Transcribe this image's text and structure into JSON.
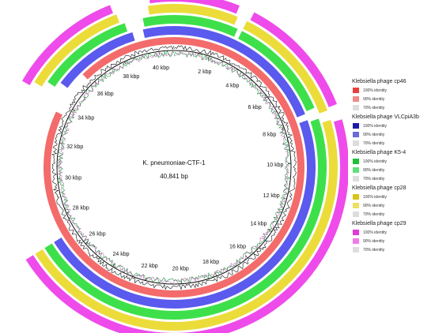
{
  "genome": {
    "name": "K. pneumoniae-CTF-1",
    "length_label": "40,841 bp",
    "length_bp": 40841
  },
  "ticks": [
    "2 kbp",
    "4 kbp",
    "6 kbp",
    "8 kbp",
    "10 kbp",
    "12 kbp",
    "14 kbp",
    "16 kbp",
    "18 kbp",
    "20 kbp",
    "22 kbp",
    "24 kbp",
    "26 kbp",
    "28 kbp",
    "30 kbp",
    "32 kbp",
    "34 kbp",
    "36 kbp",
    "38 kbp",
    "40 kbp"
  ],
  "legend": [
    {
      "title": "Klebsiella phage cp46",
      "items": [
        {
          "label": "100% identity",
          "color": "#e8413c"
        },
        {
          "label": "90% identity",
          "color": "#f08a85"
        },
        {
          "label": "70% identity",
          "color": "#dddddd"
        }
      ]
    },
    {
      "title": "Klebsiella phage VLCpiA3b",
      "items": [
        {
          "label": "100% identity",
          "color": "#1a1aa6"
        },
        {
          "label": "90% identity",
          "color": "#6a6ad8"
        },
        {
          "label": "70% identity",
          "color": "#dddddd"
        }
      ]
    },
    {
      "title": "Klebsiella phage K5-4",
      "items": [
        {
          "label": "100% identity",
          "color": "#1fbf3a"
        },
        {
          "label": "90% identity",
          "color": "#5fe07a"
        },
        {
          "label": "70% identity",
          "color": "#dddddd"
        }
      ]
    },
    {
      "title": "Klebsiella phage cp28",
      "items": [
        {
          "label": "100% identity",
          "color": "#d8c414"
        },
        {
          "label": "90% identity",
          "color": "#ece060"
        },
        {
          "label": "70% identity",
          "color": "#dddddd"
        }
      ]
    },
    {
      "title": "Klebsiella phage cp29",
      "items": [
        {
          "label": "100% identity",
          "color": "#e23ad8"
        },
        {
          "label": "90% identity",
          "color": "#f07ce8"
        },
        {
          "label": "70% identity",
          "color": "#dddddd"
        }
      ]
    }
  ],
  "rings": [
    {
      "name": "cp46",
      "color": "#f36b6b",
      "coverage": [
        [
          0,
          33.5
        ],
        [
          35.8,
          40.841
        ]
      ]
    },
    {
      "name": "VLCpiA3b",
      "color": "#5a5aee",
      "coverage": [
        [
          0,
          7.7
        ],
        [
          8.0,
          27.0
        ],
        [
          34.8,
          38.9
        ],
        [
          39.4,
          40.841
        ]
      ]
    },
    {
      "name": "K5-4",
      "color": "#3de04a",
      "coverage": [
        [
          0,
          2.8
        ],
        [
          3.0,
          7.6
        ],
        [
          8.1,
          27.0
        ],
        [
          34.5,
          38.7
        ],
        [
          39.5,
          40.841
        ]
      ]
    },
    {
      "name": "cp28",
      "color": "#ecdc3a",
      "coverage": [
        [
          0,
          2.6
        ],
        [
          3.0,
          7.9
        ],
        [
          8.3,
          27.0
        ],
        [
          34.2,
          38.5
        ],
        [
          39.8,
          40.841
        ]
      ]
    },
    {
      "name": "cp29",
      "color": "#ee4bea",
      "coverage": [
        [
          0,
          2.5
        ],
        [
          3.1,
          7.8
        ],
        [
          8.4,
          27.0
        ],
        [
          34.0,
          38.4
        ],
        [
          39.9,
          40.841
        ]
      ]
    }
  ]
}
